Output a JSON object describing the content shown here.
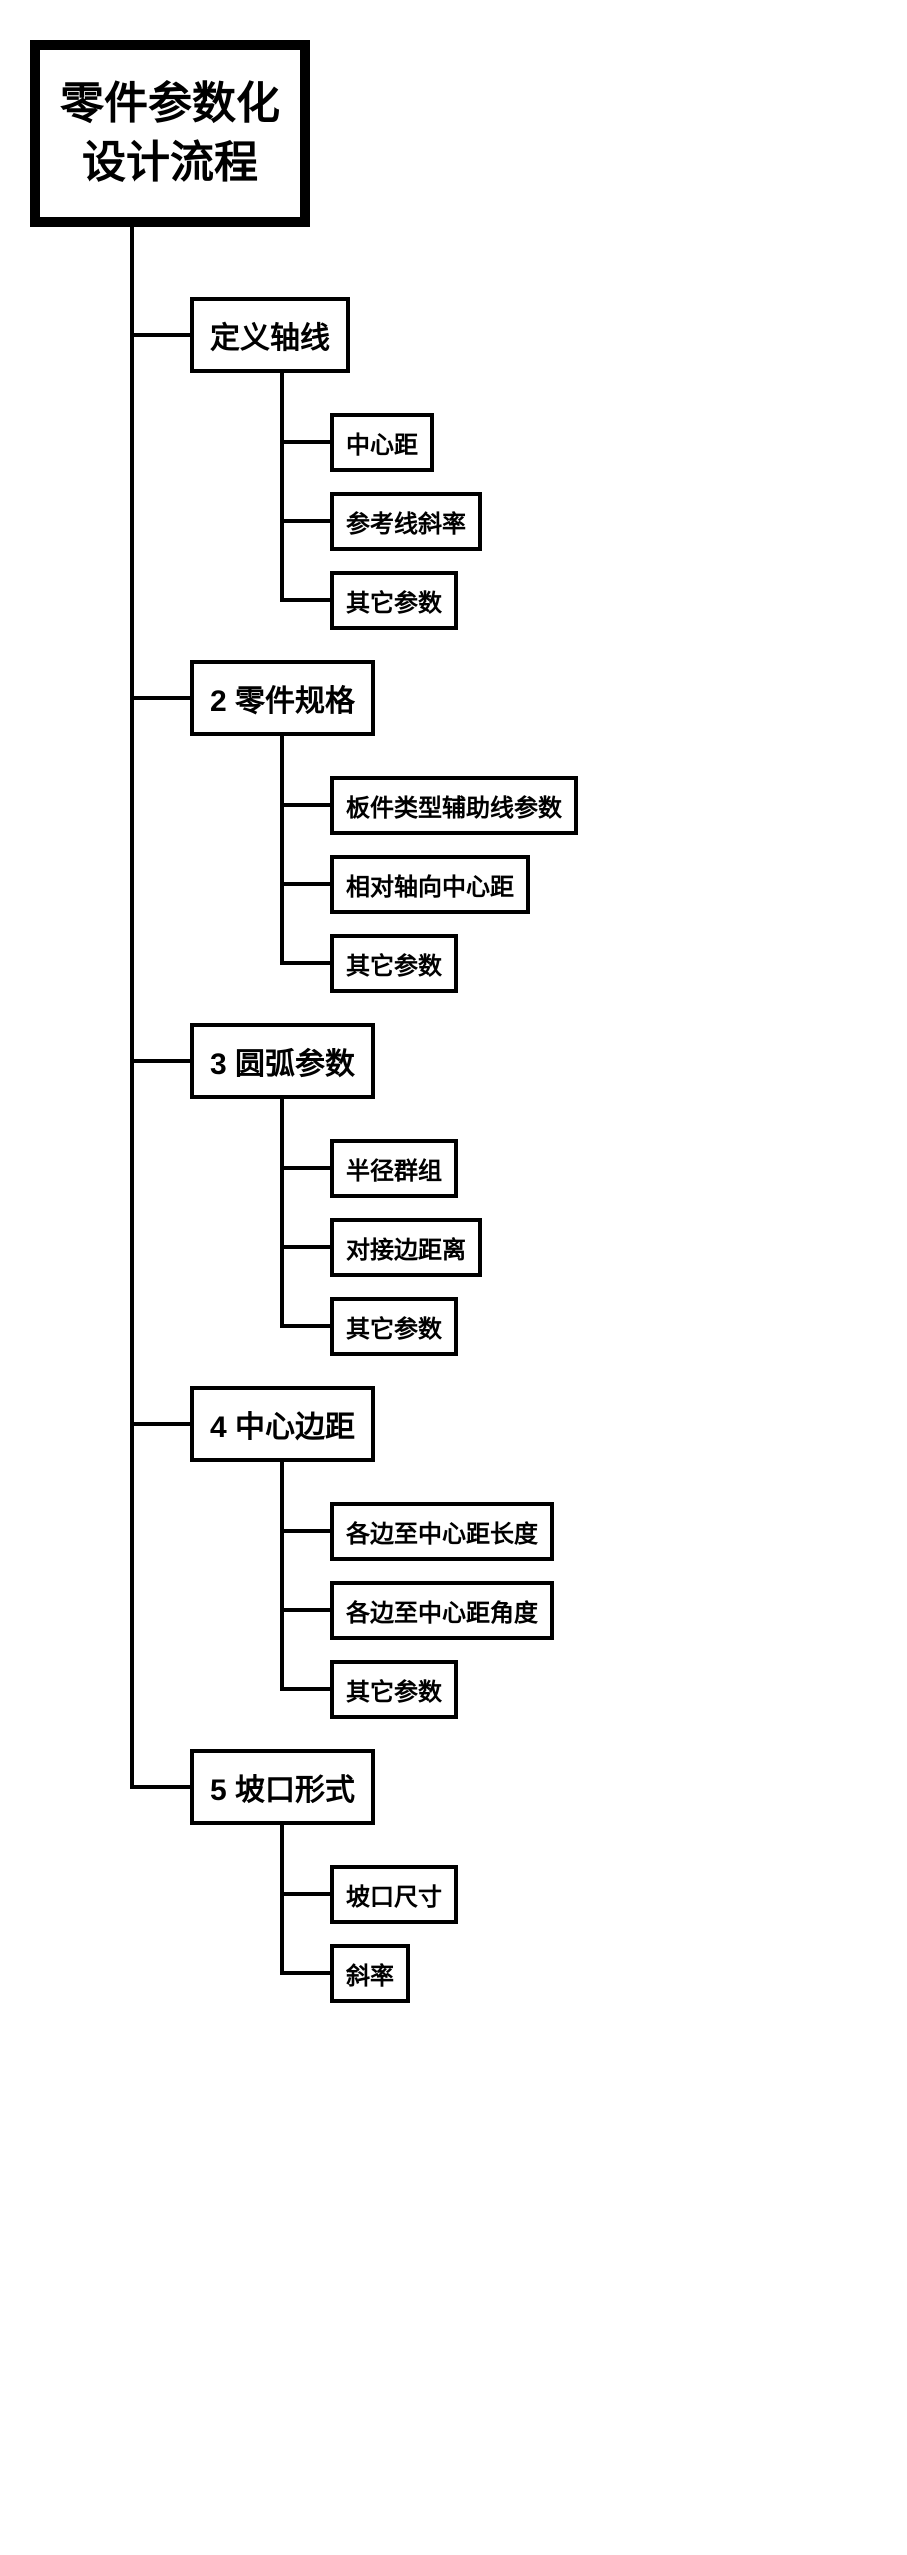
{
  "root": {
    "line1": "零件参数化",
    "line2": "设计流程",
    "fontsize": 44,
    "border_width": 10
  },
  "branches": [
    {
      "label": "定义轴线",
      "children": [
        "中心距",
        "参考线斜率",
        "其它参数"
      ]
    },
    {
      "label": "2  零件规格",
      "children": [
        "板件类型辅助线参数",
        "相对轴向中心距",
        "其它参数"
      ]
    },
    {
      "label": "3  圆弧参数",
      "children": [
        "半径群组",
        "对接边距离",
        "其它参数"
      ]
    },
    {
      "label": "4  中心边距",
      "children": [
        "各边至中心距长度",
        "各边至中心距角度",
        "其它参数"
      ]
    },
    {
      "label": "5  坡口形式",
      "children": [
        "坡口尺寸",
        "斜率"
      ]
    }
  ],
  "style": {
    "line_color": "#000000",
    "line_width": 4,
    "box_border_color": "#000000",
    "box_border_width": 4,
    "background": "#ffffff",
    "parent_fontsize": 30,
    "child_fontsize": 24,
    "font_weight": "700"
  },
  "type": "tree"
}
